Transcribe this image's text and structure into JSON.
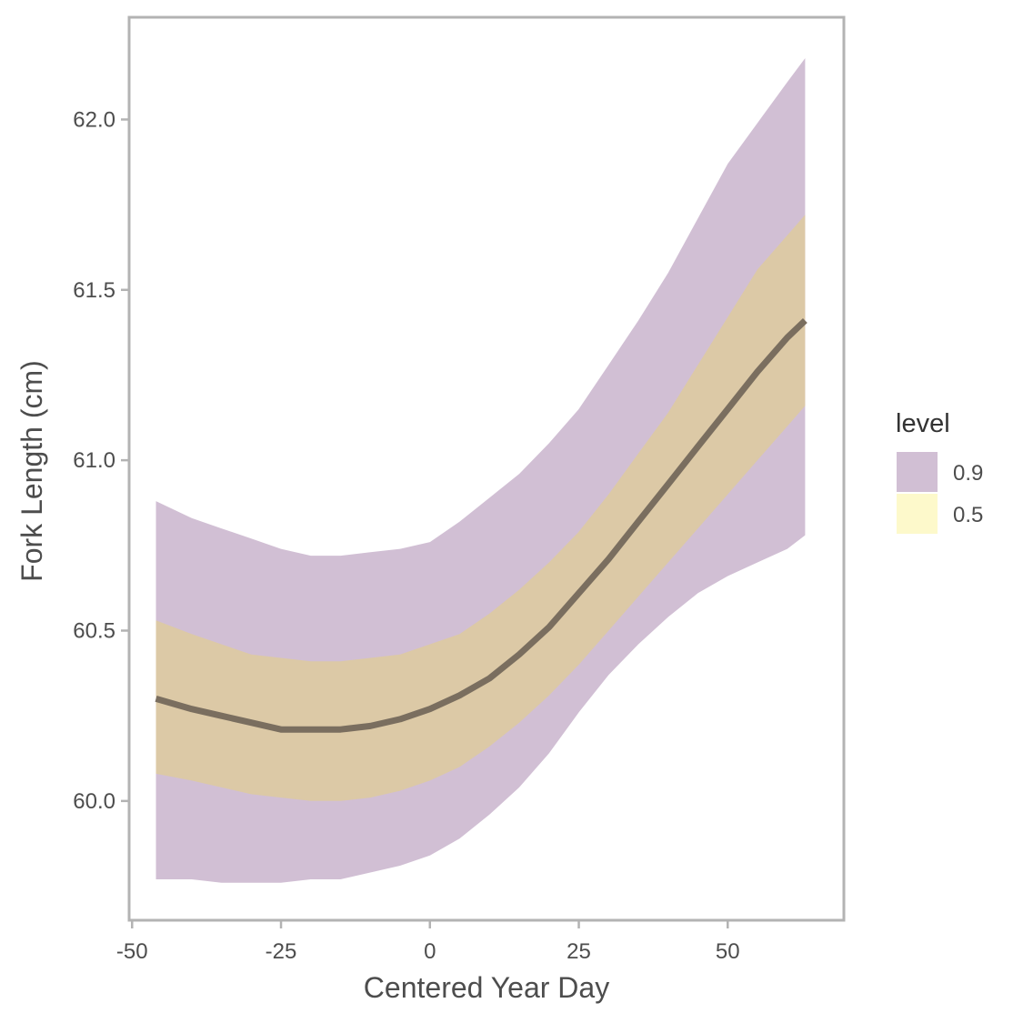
{
  "chart_data": {
    "type": "area",
    "title": "",
    "xlabel": "Centered Year Day",
    "ylabel": "Fork Length (cm)",
    "xlim": [
      -50.5,
      69.5
    ],
    "ylim": [
      59.65,
      62.3
    ],
    "xticks": [
      -50,
      -25,
      0,
      25,
      50
    ],
    "xtick_labels": [
      "-50",
      "-25",
      "0",
      "25",
      "50"
    ],
    "yticks": [
      60.0,
      60.5,
      61.0,
      61.5,
      62.0
    ],
    "ytick_labels": [
      "60.0",
      "60.5",
      "61.0",
      "61.5",
      "62.0"
    ],
    "grid": false,
    "legend": {
      "title": "level",
      "placement": "right",
      "entries": [
        {
          "label": "0.9",
          "color": "#d1bfd4"
        },
        {
          "label": "0.5",
          "color": "#fdf9cb"
        }
      ]
    },
    "x": [
      -46,
      -40,
      -35,
      -30,
      -25,
      -20,
      -15,
      -10,
      -5,
      0,
      5,
      10,
      15,
      20,
      25,
      30,
      35,
      40,
      45,
      50,
      55,
      60,
      63
    ],
    "series": [
      {
        "name": "0.9",
        "kind": "band",
        "color": "#d1bfd4",
        "lower": [
          59.77,
          59.77,
          59.76,
          59.76,
          59.76,
          59.77,
          59.77,
          59.79,
          59.81,
          59.84,
          59.89,
          59.96,
          60.04,
          60.14,
          60.26,
          60.37,
          60.46,
          60.54,
          60.61,
          60.66,
          60.7,
          60.74,
          60.78
        ],
        "upper": [
          60.88,
          60.83,
          60.8,
          60.77,
          60.74,
          60.72,
          60.72,
          60.73,
          60.74,
          60.76,
          60.82,
          60.89,
          60.96,
          61.05,
          61.15,
          61.28,
          61.41,
          61.55,
          61.71,
          61.87,
          61.99,
          62.11,
          62.18
        ]
      },
      {
        "name": "0.5",
        "kind": "band",
        "color": "#dcc9a6",
        "lower": [
          60.08,
          60.06,
          60.04,
          60.02,
          60.01,
          60.0,
          60.0,
          60.01,
          60.03,
          60.06,
          60.1,
          60.16,
          60.23,
          60.31,
          60.4,
          60.5,
          60.6,
          60.7,
          60.8,
          60.9,
          61.0,
          61.1,
          61.16
        ],
        "upper": [
          60.53,
          60.49,
          60.46,
          60.43,
          60.42,
          60.41,
          60.41,
          60.42,
          60.43,
          60.46,
          60.49,
          60.55,
          60.62,
          60.7,
          60.79,
          60.9,
          61.02,
          61.14,
          61.28,
          61.42,
          61.56,
          61.66,
          61.72
        ]
      },
      {
        "name": "",
        "kind": "line",
        "color": "#7a6e5f",
        "values": [
          60.3,
          60.27,
          60.25,
          60.23,
          60.21,
          60.21,
          60.21,
          60.22,
          60.24,
          60.27,
          60.31,
          60.36,
          60.43,
          60.51,
          60.61,
          60.71,
          60.82,
          60.93,
          61.04,
          61.15,
          61.26,
          61.36,
          61.41
        ]
      }
    ]
  }
}
